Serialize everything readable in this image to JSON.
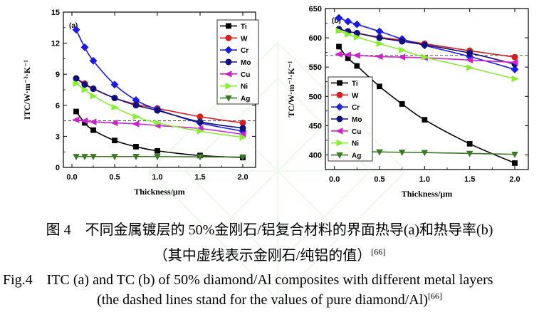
{
  "chart_data": [
    {
      "type": "line",
      "panel_label": "(a)",
      "xlabel": "Thickness/μm",
      "ylabel": "ITC/W·m⁻²·K⁻¹",
      "xlim": [
        -0.1,
        2.15
      ],
      "ylim": [
        0,
        15
      ],
      "xticks": [
        "0.0",
        "0.5",
        "1.0",
        "1.5",
        "2.0"
      ],
      "yticks": [
        "0",
        "3",
        "6",
        "9",
        "12",
        "15"
      ],
      "reference_line": {
        "value": 4.5,
        "style": "dashed"
      },
      "legend_position": "top-right",
      "x": [
        0.05,
        0.15,
        0.25,
        0.5,
        0.75,
        1.0,
        1.5,
        2.0
      ],
      "series": [
        {
          "name": "Ti",
          "color": "#000000",
          "marker": "square",
          "values": [
            5.4,
            4.3,
            3.6,
            2.6,
            2.0,
            1.6,
            1.15,
            0.95
          ]
        },
        {
          "name": "W",
          "color": "#d42020",
          "marker": "circle",
          "values": [
            8.6,
            8.1,
            7.6,
            6.7,
            6.1,
            5.7,
            4.9,
            4.3
          ]
        },
        {
          "name": "Cr",
          "color": "#1a1ae6",
          "marker": "diamond",
          "values": [
            13.3,
            11.6,
            10.3,
            8.0,
            6.5,
            5.6,
            4.3,
            3.5
          ]
        },
        {
          "name": "Mo",
          "color": "#10107a",
          "marker": "circle",
          "values": [
            8.6,
            8.0,
            7.6,
            6.7,
            6.0,
            5.5,
            4.4,
            3.8
          ]
        },
        {
          "name": "Cu",
          "color": "#cc22cc",
          "marker": "triangle-left",
          "values": [
            4.6,
            4.5,
            4.4,
            4.3,
            4.2,
            4.05,
            3.75,
            3.2
          ]
        },
        {
          "name": "Ni",
          "color": "#88ee33",
          "marker": "triangle-right",
          "values": [
            8.1,
            7.5,
            6.9,
            5.8,
            4.9,
            4.3,
            3.5,
            2.9
          ]
        },
        {
          "name": "Ag",
          "color": "#3a7a24",
          "marker": "triangle-down",
          "values": [
            1.05,
            1.05,
            1.05,
            1.05,
            1.05,
            1.05,
            1.02,
            1.0
          ]
        }
      ]
    },
    {
      "type": "line",
      "panel_label": "(b)",
      "xlabel": "Thickness/μm",
      "ylabel": "TC/W·m⁻¹·K⁻¹",
      "xlim": [
        -0.1,
        2.15
      ],
      "ylim": [
        375,
        650
      ],
      "xticks": [
        "0.0",
        "0.5",
        "1.0",
        "1.5",
        "2.0"
      ],
      "yticks": [
        "400",
        "450",
        "500",
        "550",
        "600",
        "650"
      ],
      "reference_line": {
        "value": 570,
        "style": "dashed"
      },
      "legend_position": "bottom-left",
      "x": [
        0.05,
        0.15,
        0.25,
        0.5,
        0.75,
        1.0,
        1.5,
        2.0
      ],
      "series": [
        {
          "name": "Ti",
          "color": "#000000",
          "marker": "square",
          "values": [
            585,
            565,
            552,
            517,
            487,
            460,
            419,
            386
          ]
        },
        {
          "name": "W",
          "color": "#d42020",
          "marker": "circle",
          "values": [
            614,
            611,
            608,
            601,
            596,
            590,
            578,
            567
          ]
        },
        {
          "name": "Cr",
          "color": "#1a1ae6",
          "marker": "diamond",
          "values": [
            634,
            628,
            623,
            611,
            598,
            587,
            568,
            546
          ]
        },
        {
          "name": "Mo",
          "color": "#10107a",
          "marker": "circle",
          "values": [
            615,
            611,
            608,
            600,
            594,
            588,
            574,
            555
          ]
        },
        {
          "name": "Cu",
          "color": "#cc22cc",
          "marker": "triangle-left",
          "values": [
            572,
            571,
            570,
            568,
            567,
            566,
            562,
            558
          ]
        },
        {
          "name": "Ni",
          "color": "#88ee33",
          "marker": "triangle-right",
          "values": [
            612,
            606,
            601,
            590,
            579,
            567,
            549,
            530
          ]
        },
        {
          "name": "Ag",
          "color": "#3a7a24",
          "marker": "triangle-down",
          "values": [
            407,
            407,
            406,
            405,
            404.5,
            404,
            402.5,
            401
          ]
        }
      ]
    }
  ],
  "caption": {
    "cn_line1": "图 4　不同金属镀层的 50%金刚石/铝复合材料的界面热导(a)和热导率(b)",
    "cn_line2": "（其中虚线表示金刚石/纯铝的值）",
    "cn_ref": "[66]",
    "en_line1": "Fig.4　ITC (a) and TC (b) of 50% diamond/Al composites with different metal layers",
    "en_line2": "(the dashed lines stand for the values of pure diamond/Al)",
    "en_ref": "[66]"
  }
}
